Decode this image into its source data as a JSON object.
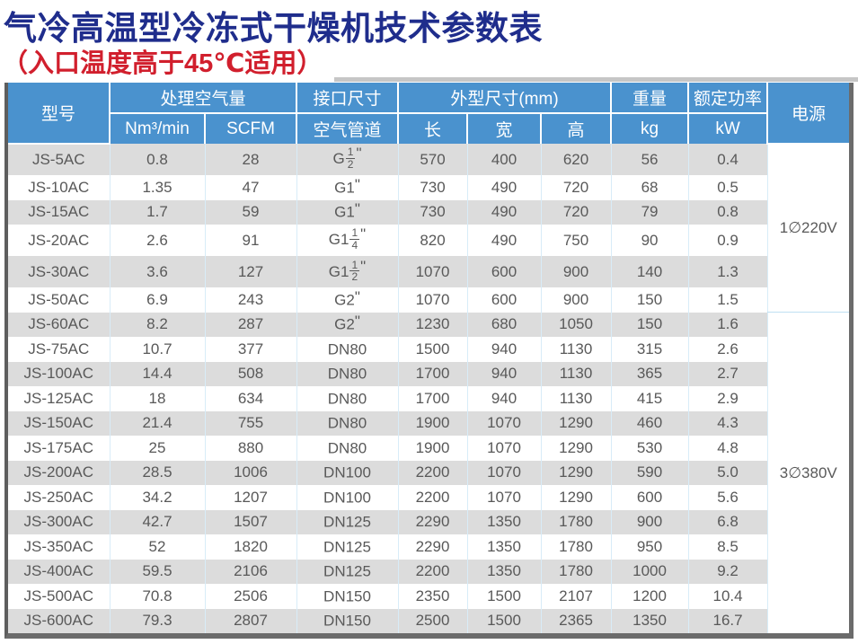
{
  "title": "气冷高温型冷冻式干燥机技术参数表",
  "subtitle": "（入口温度高于45℃适用）",
  "colors": {
    "title": "#1F2D8C",
    "subtitle": "#D11F2D",
    "header_bg": "#4A92CE",
    "header_text": "#FFFFFF",
    "stripe": "#DCDCDC",
    "cell_text": "#595959",
    "grid_line": "#D8ECF8",
    "frame": "#6B6B6B"
  },
  "table": {
    "header": {
      "model": "型号",
      "air_volume": "处理空气量",
      "air_volume_units": [
        "Nm³/min",
        "SCFM"
      ],
      "port_size": "接口尺寸",
      "port_size_sub": "空气管道",
      "dimensions": "外型尺寸(mm)",
      "dimension_subs": [
        "长",
        "宽",
        "高"
      ],
      "weight": "重量",
      "weight_unit": "kg",
      "power": "额定功率",
      "power_unit": "kW",
      "supply": "电源"
    },
    "power_groups": [
      {
        "label": "1∅220V",
        "rows": 6
      },
      {
        "label": "3∅380V",
        "rows": 13
      }
    ],
    "rows": [
      {
        "model": "JS-5AC",
        "nm3": "0.8",
        "scfm": "28",
        "pipe": {
          "base": "G",
          "num": "1",
          "den": "2",
          "quote": true
        },
        "length": "570",
        "width": "400",
        "height": "620",
        "kg": "56",
        "kw": "0.4"
      },
      {
        "model": "JS-10AC",
        "nm3": "1.35",
        "scfm": "47",
        "pipe": {
          "base": "G1",
          "quote": true
        },
        "length": "730",
        "width": "490",
        "height": "720",
        "kg": "68",
        "kw": "0.5"
      },
      {
        "model": "JS-15AC",
        "nm3": "1.7",
        "scfm": "59",
        "pipe": {
          "base": "G1",
          "quote": true
        },
        "length": "730",
        "width": "490",
        "height": "720",
        "kg": "79",
        "kw": "0.8"
      },
      {
        "model": "JS-20AC",
        "nm3": "2.6",
        "scfm": "91",
        "pipe": {
          "base": "G1",
          "num": "1",
          "den": "4",
          "quote": true
        },
        "length": "820",
        "width": "490",
        "height": "750",
        "kg": "90",
        "kw": "0.9"
      },
      {
        "model": "JS-30AC",
        "nm3": "3.6",
        "scfm": "127",
        "pipe": {
          "base": "G1",
          "num": "1",
          "den": "2",
          "quote": true
        },
        "length": "1070",
        "width": "600",
        "height": "900",
        "kg": "140",
        "kw": "1.3"
      },
      {
        "model": "JS-50AC",
        "nm3": "6.9",
        "scfm": "243",
        "pipe": {
          "base": "G2",
          "quote": true
        },
        "length": "1070",
        "width": "600",
        "height": "900",
        "kg": "150",
        "kw": "1.5"
      },
      {
        "model": "JS-60AC",
        "nm3": "8.2",
        "scfm": "287",
        "pipe": {
          "base": "G2",
          "quote": true
        },
        "length": "1230",
        "width": "680",
        "height": "1050",
        "kg": "150",
        "kw": "1.6"
      },
      {
        "model": "JS-75AC",
        "nm3": "10.7",
        "scfm": "377",
        "pipe": {
          "base": "DN80"
        },
        "length": "1500",
        "width": "940",
        "height": "1130",
        "kg": "315",
        "kw": "2.6"
      },
      {
        "model": "JS-100AC",
        "nm3": "14.4",
        "scfm": "508",
        "pipe": {
          "base": "DN80"
        },
        "length": "1700",
        "width": "940",
        "height": "1130",
        "kg": "365",
        "kw": "2.7"
      },
      {
        "model": "JS-125AC",
        "nm3": "18",
        "scfm": "634",
        "pipe": {
          "base": "DN80"
        },
        "length": "1700",
        "width": "940",
        "height": "1130",
        "kg": "415",
        "kw": "2.9"
      },
      {
        "model": "JS-150AC",
        "nm3": "21.4",
        "scfm": "755",
        "pipe": {
          "base": "DN80"
        },
        "length": "1900",
        "width": "1070",
        "height": "1290",
        "kg": "460",
        "kw": "4.3"
      },
      {
        "model": "JS-175AC",
        "nm3": "25",
        "scfm": "880",
        "pipe": {
          "base": "DN80"
        },
        "length": "1900",
        "width": "1070",
        "height": "1290",
        "kg": "530",
        "kw": "4.8"
      },
      {
        "model": "JS-200AC",
        "nm3": "28.5",
        "scfm": "1006",
        "pipe": {
          "base": "DN100"
        },
        "length": "2200",
        "width": "1070",
        "height": "1290",
        "kg": "590",
        "kw": "5.0"
      },
      {
        "model": "JS-250AC",
        "nm3": "34.2",
        "scfm": "1207",
        "pipe": {
          "base": "DN100"
        },
        "length": "2200",
        "width": "1070",
        "height": "1290",
        "kg": "600",
        "kw": "5.6"
      },
      {
        "model": "JS-300AC",
        "nm3": "42.7",
        "scfm": "1507",
        "pipe": {
          "base": "DN125"
        },
        "length": "2290",
        "width": "1350",
        "height": "1780",
        "kg": "900",
        "kw": "6.8"
      },
      {
        "model": "JS-350AC",
        "nm3": "52",
        "scfm": "1820",
        "pipe": {
          "base": "DN125"
        },
        "length": "2290",
        "width": "1350",
        "height": "1780",
        "kg": "950",
        "kw": "8.5"
      },
      {
        "model": "JS-400AC",
        "nm3": "59.5",
        "scfm": "2106",
        "pipe": {
          "base": "DN125"
        },
        "length": "2200",
        "width": "1350",
        "height": "1780",
        "kg": "1000",
        "kw": "9.2"
      },
      {
        "model": "JS-500AC",
        "nm3": "70.8",
        "scfm": "2506",
        "pipe": {
          "base": "DN150"
        },
        "length": "2350",
        "width": "1500",
        "height": "2107",
        "kg": "1200",
        "kw": "10.4"
      },
      {
        "model": "JS-600AC",
        "nm3": "79.3",
        "scfm": "2807",
        "pipe": {
          "base": "DN150"
        },
        "length": "2500",
        "width": "1500",
        "height": "2365",
        "kg": "1350",
        "kw": "16.7"
      }
    ]
  }
}
